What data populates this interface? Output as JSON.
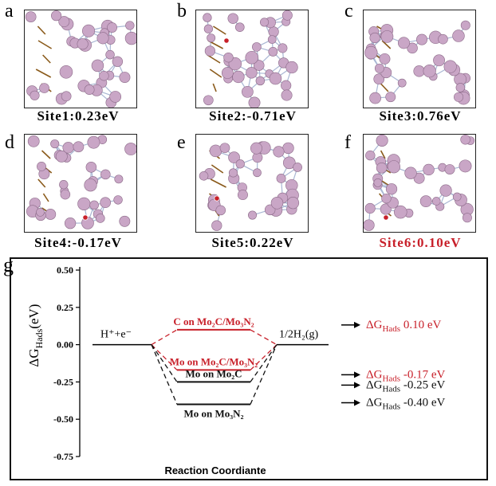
{
  "panels": [
    {
      "letter": "a",
      "caption": "Site1:0.23eV",
      "highlight": false
    },
    {
      "letter": "b",
      "caption": "Site2:-0.71eV",
      "highlight": false
    },
    {
      "letter": "c",
      "caption": "Site3:0.76eV",
      "highlight": false
    },
    {
      "letter": "d",
      "caption": "Site4:-0.17eV",
      "highlight": false
    },
    {
      "letter": "e",
      "caption": "Site5:0.22eV",
      "highlight": false
    },
    {
      "letter": "f",
      "caption": "Site6:0.10eV",
      "highlight": true
    }
  ],
  "colors": {
    "atom": "#c9a6c6",
    "atom_edge": "#8b6a88",
    "bond": "#a9b7d4",
    "red": "#c8202a",
    "brown": "#8a5a1a"
  },
  "chart_label": "g",
  "chart_data": {
    "type": "line",
    "ylabel": "ΔG_Hads(eV)",
    "xlabel": "Reaction Coordiante",
    "ylim": [
      -0.75,
      0.5
    ],
    "yticks": [
      "0.50",
      "0.25",
      "0.00",
      "-0.25",
      "-0.50",
      "-0.75"
    ],
    "ytick_values": [
      0.5,
      0.25,
      0.0,
      -0.25,
      -0.5,
      -0.75
    ],
    "start_label": "H⁺+e⁻",
    "end_label": "1/2H₂(g)",
    "series": [
      {
        "name": "C on Mo₂C/Mo₃N₂",
        "value": 0.1,
        "color": "#c8202a",
        "style": "dashed"
      },
      {
        "name": "Mo on Mo₂C/Mo₃N₂",
        "value": -0.17,
        "color": "#c8202a",
        "style": "dashed"
      },
      {
        "name": "Mo on Mo₂C",
        "value": -0.25,
        "color": "#111111",
        "style": "dashed"
      },
      {
        "name": "Mo on Mo₃N₂",
        "value": -0.4,
        "color": "#111111",
        "style": "dashed"
      }
    ],
    "annotations": [
      {
        "symbol": "ΔG",
        "sub": "Hads",
        "value": "0.10 eV",
        "color": "#c8202a"
      },
      {
        "symbol": "ΔG",
        "sub": "Hads",
        "value": "-0.17 eV",
        "color": "#c8202a"
      },
      {
        "symbol": "ΔG",
        "sub": "Hads",
        "value": "-0.25 eV",
        "color": "#111111"
      },
      {
        "symbol": "ΔG",
        "sub": "Hads",
        "value": "-0.40 eV",
        "color": "#111111"
      }
    ]
  }
}
